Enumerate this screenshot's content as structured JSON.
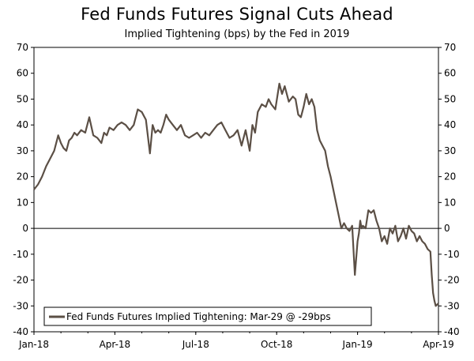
{
  "chart_data": {
    "type": "line",
    "title": "Fed Funds Futures Signal Cuts Ahead",
    "subtitle": "Implied Tightening (bps) by the Fed in 2019",
    "xlabel": "",
    "ylabel": "",
    "ylim": [
      -40,
      70
    ],
    "yticks": [
      70,
      60,
      50,
      40,
      30,
      20,
      10,
      0,
      -10,
      -20,
      -30,
      -40
    ],
    "xlim": [
      0,
      15
    ],
    "xticks": [
      {
        "label": "Jan-18",
        "x": 0
      },
      {
        "label": "Apr-18",
        "x": 3
      },
      {
        "label": "Jul-18",
        "x": 6
      },
      {
        "label": "Oct-18",
        "x": 9
      },
      {
        "label": "Jan-19",
        "x": 12
      },
      {
        "label": "Apr-19",
        "x": 15
      }
    ],
    "grid": false,
    "zero_line": true,
    "legend": {
      "placement": "bottom-left",
      "label": "Fed Funds Futures Implied Tightening: Mar-29 @ -29bps"
    },
    "series": [
      {
        "name": "Fed Funds Futures Implied Tightening: Mar-29 @ -29bps",
        "color": "#5b4f45",
        "x": [
          0,
          0.15,
          0.3,
          0.45,
          0.6,
          0.75,
          0.9,
          1.0,
          1.1,
          1.2,
          1.3,
          1.4,
          1.5,
          1.6,
          1.75,
          1.9,
          2.05,
          2.2,
          2.35,
          2.5,
          2.6,
          2.7,
          2.8,
          2.95,
          3.1,
          3.25,
          3.4,
          3.55,
          3.7,
          3.85,
          4.0,
          4.15,
          4.3,
          4.4,
          4.5,
          4.6,
          4.7,
          4.8,
          4.9,
          5.0,
          5.15,
          5.3,
          5.45,
          5.6,
          5.75,
          5.9,
          6.05,
          6.2,
          6.35,
          6.5,
          6.65,
          6.8,
          6.95,
          7.1,
          7.25,
          7.4,
          7.55,
          7.7,
          7.85,
          8.0,
          8.1,
          8.2,
          8.3,
          8.45,
          8.6,
          8.7,
          8.8,
          8.95,
          9.1,
          9.2,
          9.3,
          9.45,
          9.6,
          9.7,
          9.8,
          9.9,
          10.0,
          10.1,
          10.2,
          10.3,
          10.4,
          10.5,
          10.6,
          10.7,
          10.8,
          10.9,
          11.0,
          11.1,
          11.2,
          11.3,
          11.4,
          11.5,
          11.6,
          11.7,
          11.8,
          11.9,
          12.0,
          12.05,
          12.1,
          12.15,
          12.2,
          12.3,
          12.4,
          12.5,
          12.6,
          12.7,
          12.8,
          12.9,
          13.0,
          13.1,
          13.2,
          13.3,
          13.4,
          13.5,
          13.6,
          13.7,
          13.8,
          13.9,
          14.0,
          14.1,
          14.2,
          14.3,
          14.4,
          14.5,
          14.6,
          14.7,
          14.75,
          14.8,
          14.85,
          14.9,
          15.0
        ],
        "values": [
          15,
          17,
          20,
          24,
          27,
          30,
          36,
          33,
          31,
          30,
          34,
          35,
          37,
          36,
          38,
          37,
          43,
          36,
          35,
          33,
          37,
          36,
          39,
          38,
          40,
          41,
          40,
          38,
          40,
          46,
          45,
          42,
          29,
          40,
          37,
          38,
          37,
          40,
          44,
          42,
          40,
          38,
          40,
          36,
          35,
          36,
          37,
          35,
          37,
          36,
          38,
          40,
          41,
          38,
          35,
          36,
          38,
          32,
          38,
          30,
          40,
          37,
          45,
          48,
          47,
          50,
          48,
          46,
          56,
          52,
          55,
          49,
          51,
          50,
          44,
          43,
          47,
          52,
          48,
          50,
          47,
          38,
          34,
          32,
          30,
          24,
          20,
          15,
          10,
          5,
          0,
          2,
          0,
          -1,
          1,
          -18,
          -5,
          -2,
          3,
          0,
          1,
          0,
          7,
          6,
          7,
          3,
          0,
          -5,
          -3,
          -6,
          0,
          -2,
          1,
          -5,
          -3,
          0,
          -4,
          1,
          -1,
          -2,
          -5,
          -3,
          -5,
          -6,
          -8,
          -9,
          -18,
          -25,
          -28,
          -30,
          -29
        ]
      }
    ]
  }
}
